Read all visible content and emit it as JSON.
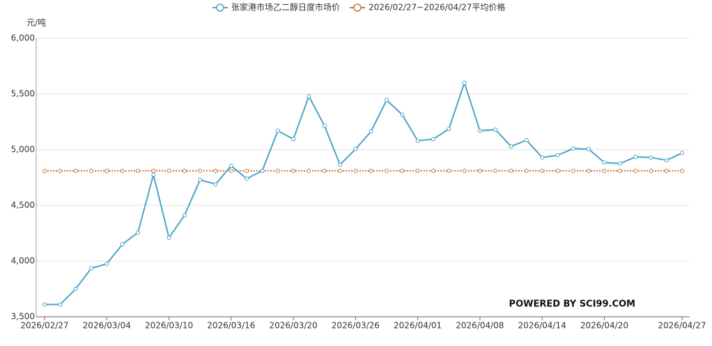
{
  "chart_data": {
    "type": "line",
    "y_label": "元/吨",
    "watermark": "POWERED BY SCI99.COM",
    "categories": [
      "2026/02/27",
      null,
      null,
      null,
      "2026/03/04",
      null,
      null,
      null,
      "2026/03/10",
      null,
      null,
      null,
      "2026/03/16",
      null,
      null,
      null,
      "2026/03/20",
      null,
      null,
      null,
      "2026/03/26",
      null,
      null,
      null,
      "2026/04/01",
      null,
      null,
      null,
      "2026/04/08",
      null,
      null,
      null,
      "2026/04/14",
      null,
      null,
      null,
      "2026/04/20",
      null,
      null,
      null,
      null,
      "2026/04/27"
    ],
    "series": [
      {
        "name": "张家港市场乙二醇日度市场价",
        "color": "#4ba3c7",
        "dashed": false,
        "values": [
          3610,
          3610,
          3750,
          3935,
          3975,
          4150,
          4255,
          4775,
          4210,
          4410,
          4730,
          4690,
          4855,
          4740,
          4810,
          5170,
          5095,
          5480,
          5215,
          4865,
          5005,
          5165,
          5445,
          5315,
          5080,
          5095,
          5185,
          5600,
          5170,
          5180,
          5030,
          5085,
          4930,
          4950,
          5010,
          5005,
          4885,
          4875,
          4935,
          4930,
          4905,
          4970
        ]
      },
      {
        "name": "2026/02/27~2026/04/27平均价格",
        "color": "#c8733a",
        "dashed": true,
        "values": [
          4810,
          4810,
          4810,
          4810,
          4810,
          4810,
          4810,
          4810,
          4810,
          4810,
          4810,
          4810,
          4810,
          4810,
          4810,
          4810,
          4810,
          4810,
          4810,
          4810,
          4810,
          4810,
          4810,
          4810,
          4810,
          4810,
          4810,
          4810,
          4810,
          4810,
          4810,
          4810,
          4810,
          4810,
          4810,
          4810,
          4810,
          4810,
          4810,
          4810,
          4810,
          4810
        ]
      }
    ],
    "ylim": [
      3500,
      6000
    ],
    "yticks": [
      {
        "value": 3500,
        "label": "3,500"
      },
      {
        "value": 4000,
        "label": "4,000"
      },
      {
        "value": 4500,
        "label": "4,500"
      },
      {
        "value": 5000,
        "label": "5,000"
      },
      {
        "value": 5500,
        "label": "5,500"
      },
      {
        "value": 6000,
        "label": "6,000"
      }
    ],
    "grid": true
  }
}
